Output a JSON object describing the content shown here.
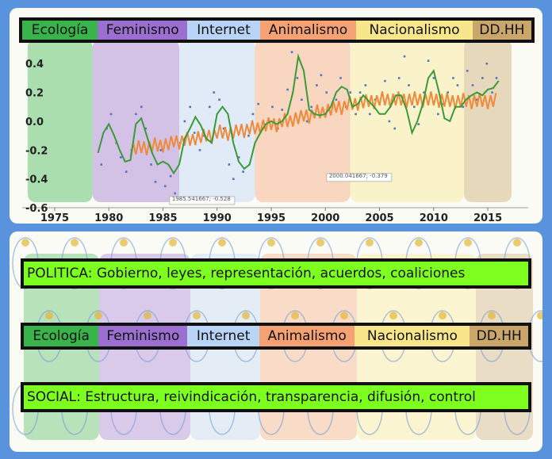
{
  "categories": [
    {
      "label": "Ecología",
      "color": "#39b44a"
    },
    {
      "label": "Feminismo",
      "color": "#9b6fd0"
    },
    {
      "label": "Internet",
      "color": "#b9d4f7"
    },
    {
      "label": "Animalismo",
      "color": "#f4a274"
    },
    {
      "label": "Nacionalismo",
      "color": "#f8e78a"
    },
    {
      "label": "DD.HH",
      "color": "#c9a76a"
    }
  ],
  "politica_text": "POLITICA: Gobierno, leyes, representación, acuerdos, coaliciones",
  "social_text": "SOCIAL: Estructura, reivindicación, transparencia, difusión, control",
  "chart_data": {
    "type": "line",
    "xlim": [
      1972,
      2018
    ],
    "ylim": [
      -0.6,
      0.5
    ],
    "xticks": [
      1975,
      1980,
      1985,
      1990,
      1995,
      2000,
      2005,
      2010,
      2015
    ],
    "yticks": [
      -0.6,
      -0.4,
      -0.2,
      0.0,
      0.2,
      0.4
    ],
    "ytick_labels": [
      "-0.6",
      "-0.4",
      "-0.2",
      "0.0",
      "0.2",
      "0.4"
    ],
    "bands": [
      {
        "label": "Ecología",
        "x": [
          1972.5,
          1978.5
        ]
      },
      {
        "label": "Feminismo",
        "x": [
          1978.5,
          1986.5
        ]
      },
      {
        "label": "Internet",
        "x": [
          1986.5,
          1993.5
        ]
      },
      {
        "label": "Animalismo",
        "x": [
          1993.5,
          2002.3
        ]
      },
      {
        "label": "Nacionalismo",
        "x": [
          2002.3,
          2012.8
        ]
      },
      {
        "label": "DD.HH",
        "x": [
          2012.8,
          2017.2
        ]
      }
    ],
    "series": [
      {
        "color": "#3a9a3a",
        "x": [
          1979,
          1979.5,
          1980,
          1980.5,
          1981,
          1981.5,
          1982,
          1982.5,
          1983,
          1983.5,
          1984,
          1984.5,
          1985,
          1985.5,
          1986,
          1986.5,
          1987,
          1987.5,
          1988,
          1988.5,
          1989,
          1989.5,
          1990,
          1990.5,
          1991,
          1991.5,
          1992,
          1992.5,
          1993,
          1993.5,
          1994,
          1994.5,
          1995,
          1995.5,
          1996,
          1996.5,
          1997,
          1997.5,
          1998,
          1998.5,
          1999,
          1999.5,
          2000,
          2000.5,
          2001,
          2001.5,
          2002,
          2002.5,
          2003,
          2003.5,
          2004,
          2004.5,
          2005,
          2005.5,
          2006,
          2006.5,
          2007,
          2007.5,
          2008,
          2008.5,
          2009,
          2009.5,
          2010,
          2010.5,
          2011,
          2011.5,
          2012,
          2012.5,
          2013,
          2013.5,
          2014,
          2014.5,
          2015,
          2015.5,
          2016
        ],
        "y": [
          -0.22,
          -0.08,
          -0.02,
          -0.1,
          -0.2,
          -0.28,
          -0.27,
          -0.02,
          0.02,
          -0.1,
          -0.22,
          -0.3,
          -0.28,
          -0.3,
          -0.36,
          -0.3,
          -0.12,
          -0.05,
          0.03,
          -0.03,
          -0.12,
          -0.15,
          0.05,
          0.1,
          0.05,
          -0.15,
          -0.28,
          -0.33,
          -0.3,
          -0.15,
          -0.08,
          -0.02,
          0.0,
          -0.02,
          0.0,
          0.05,
          0.2,
          0.45,
          0.35,
          0.08,
          0.05,
          0.04,
          0.05,
          0.1,
          0.2,
          0.24,
          0.22,
          0.1,
          0.12,
          0.18,
          0.14,
          0.1,
          0.05,
          0.05,
          0.1,
          0.18,
          0.18,
          0.08,
          -0.08,
          0.0,
          0.12,
          0.3,
          0.35,
          0.2,
          0.02,
          0.0,
          0.1,
          0.1,
          0.15,
          0.18,
          0.2,
          0.18,
          0.22,
          0.23,
          0.28
        ]
      },
      {
        "color": "#f08a3a",
        "x": [
          1982,
          1983,
          1984,
          1985,
          1986,
          1987,
          1988,
          1989,
          1990,
          1991,
          1992,
          1993,
          1994,
          1995,
          1996,
          1997,
          1998,
          1999,
          2000,
          2001,
          2002,
          2003,
          2004,
          2005,
          2006,
          2007,
          2008,
          2009,
          2010,
          2011,
          2012,
          2013,
          2014,
          2015
        ],
        "y": [
          -0.19,
          -0.18,
          -0.17,
          -0.16,
          -0.14,
          -0.13,
          -0.11,
          -0.1,
          -0.08,
          -0.08,
          -0.06,
          -0.05,
          -0.03,
          -0.02,
          0.0,
          0.02,
          0.04,
          0.06,
          0.08,
          0.1,
          0.12,
          0.13,
          0.14,
          0.15,
          0.15,
          0.15,
          0.15,
          0.15,
          0.15,
          0.14,
          0.14,
          0.14,
          0.14,
          0.14
        ]
      },
      {
        "color": "#5570c8",
        "x": [
          1979.3,
          1979.8,
          1980.2,
          1980.7,
          1981.1,
          1981.6,
          1982.1,
          1982.5,
          1983.0,
          1983.4,
          1983.9,
          1984.3,
          1984.8,
          1985.2,
          1985.7,
          1986.1,
          1986.6,
          1987.0,
          1987.5,
          1987.9,
          1988.4,
          1988.8,
          1989.3,
          1989.7,
          1990.2,
          1990.6,
          1991.1,
          1991.5,
          1992.0,
          1992.4,
          1992.9,
          1993.3,
          1993.8,
          1994.2,
          1994.7,
          1995.1,
          1995.6,
          1996.0,
          1996.5,
          1996.9,
          1997.4,
          1997.8,
          1998.3,
          1998.7,
          1999.2,
          1999.6,
          2000.1,
          2000.5,
          2001.0,
          2001.4,
          2001.9,
          2002.3,
          2002.8,
          2003.2,
          2003.7,
          2004.1,
          2004.6,
          2005.0,
          2005.5,
          2005.9,
          2006.4,
          2006.8,
          2007.3,
          2007.7,
          2008.2,
          2008.6,
          2009.1,
          2009.5,
          2010.0,
          2010.4,
          2010.9,
          2011.3,
          2011.8,
          2012.2,
          2012.7,
          2013.1,
          2013.6,
          2014.0,
          2014.5,
          2014.9,
          2015.4,
          2015.8
        ],
        "y": [
          -0.3,
          -0.05,
          0.05,
          -0.15,
          -0.25,
          -0.35,
          -0.2,
          0.05,
          0.1,
          -0.05,
          -0.3,
          -0.42,
          -0.2,
          -0.45,
          -0.38,
          -0.5,
          -0.15,
          0.0,
          0.1,
          -0.08,
          -0.2,
          -0.1,
          0.1,
          0.2,
          0.15,
          -0.05,
          -0.3,
          -0.4,
          -0.25,
          -0.35,
          -0.1,
          0.05,
          0.12,
          -0.05,
          0.0,
          0.1,
          -0.05,
          0.08,
          0.22,
          0.48,
          0.3,
          0.15,
          0.0,
          0.1,
          0.25,
          0.32,
          0.2,
          0.05,
          0.15,
          0.3,
          0.1,
          0.2,
          0.05,
          0.2,
          0.25,
          0.05,
          0.15,
          0.12,
          0.28,
          0.0,
          -0.05,
          0.3,
          0.45,
          0.25,
          0.1,
          -0.02,
          0.2,
          0.42,
          0.3,
          0.05,
          0.12,
          0.2,
          0.3,
          0.25,
          0.1,
          0.35,
          0.25,
          0.15,
          0.3,
          0.4,
          0.2,
          0.3
        ]
      }
    ],
    "annotations": [
      {
        "x": 1985.541667,
        "y": -0.528,
        "text": "1985.541667; -0.528"
      },
      {
        "x": 2000.041667,
        "y": -0.379,
        "text": "2000.041667; -0.379"
      }
    ]
  }
}
